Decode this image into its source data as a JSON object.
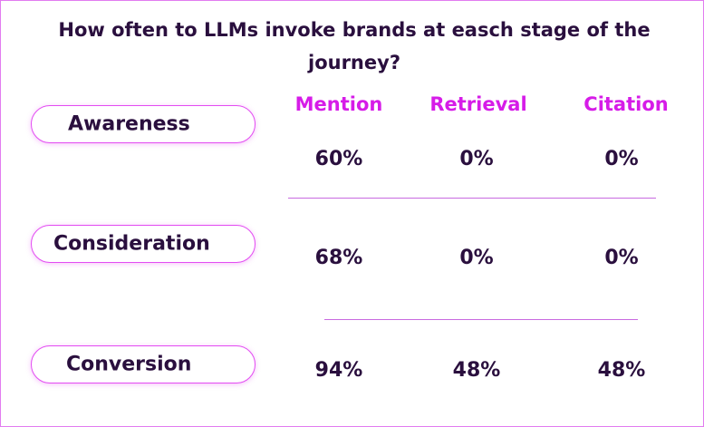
{
  "title": "How often to LLMs invoke brands at easch stage of the journey?",
  "columns": [
    "Mention",
    "Retrieval",
    "Citation"
  ],
  "rows": [
    {
      "stage": "Awareness",
      "values": [
        "60%",
        "0%",
        "0%"
      ]
    },
    {
      "stage": "Consideration",
      "values": [
        "68%",
        "0%",
        "0%"
      ]
    },
    {
      "stage": "Conversion",
      "values": [
        "94%",
        "48%",
        "48%"
      ]
    }
  ],
  "colors": {
    "accent": "#d61ce8",
    "text": "#2a0f3e",
    "border": "#e27cf0"
  }
}
